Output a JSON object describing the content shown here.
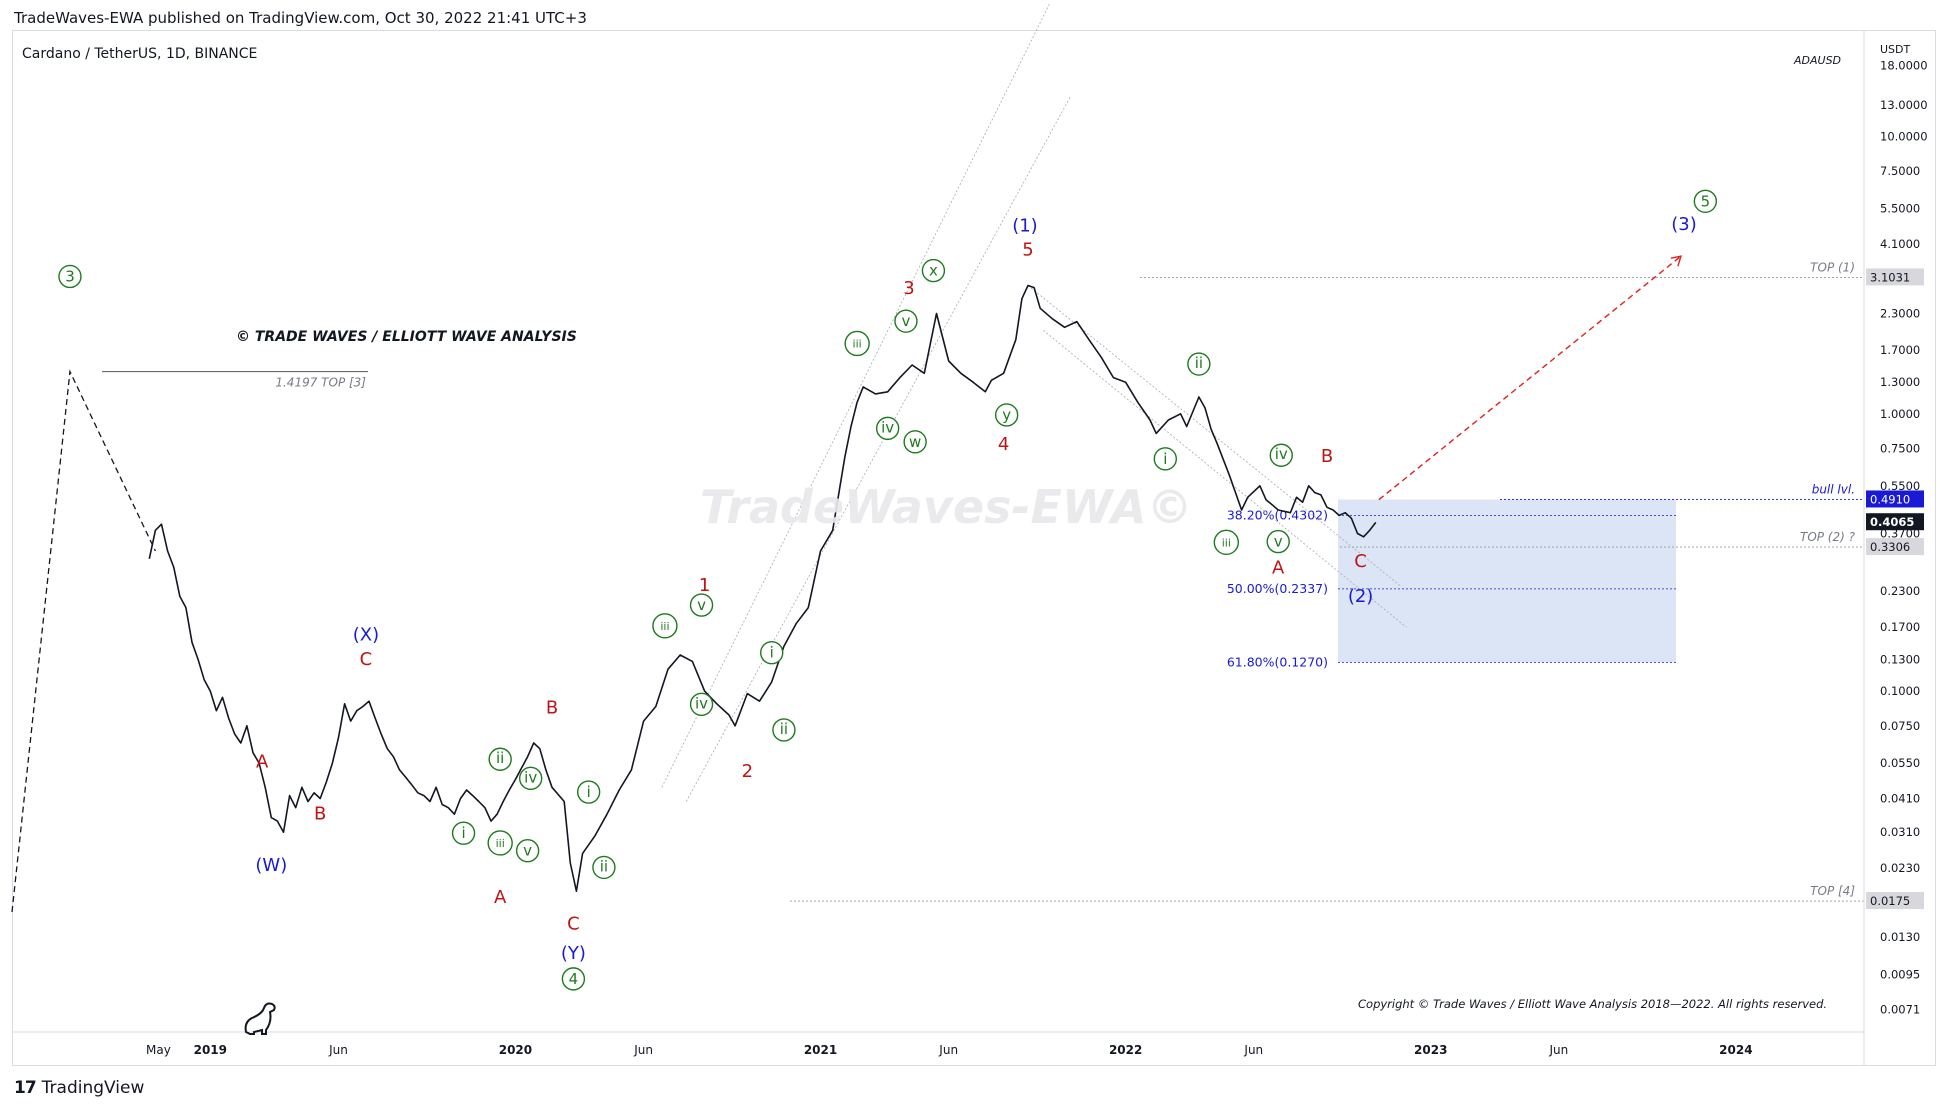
{
  "header": {
    "publisher_line": "TradeWaves-EWA published on TradingView.com, Oct 30, 2022 21:41 UTC+3"
  },
  "chart_title": "Cardano / TetherUS, 1D, BINANCE",
  "symbol_tag": "ADAUSD",
  "currency": "USDT",
  "watermark": "TradeWaves-EWA©",
  "copyright_banner": "© TRADE WAVES / ELLIOTT WAVE ANALYSIS",
  "copyright_footer": "Copyright © Trade Waves / Elliott Wave Analysis 2018—2022. All rights reserved.",
  "footer": {
    "brand": "TradingView",
    "logo_mark": "17"
  },
  "colors": {
    "blue": "#1a1ad6",
    "red": "#c01414",
    "green": "#1e7a1e",
    "fib_zone": "#d6e1f5"
  },
  "chart_data": {
    "type": "line",
    "title": "Cardano / TetherUS, 1D, BINANCE",
    "scale": "log",
    "ylim": [
      0.006,
      24
    ],
    "x_range": [
      2018.35,
      2024.42
    ],
    "y_ticks": [
      "18.0000",
      "13.0000",
      "10.0000",
      "7.5000",
      "5.5000",
      "4.1000",
      "2.3000",
      "1.7000",
      "1.3000",
      "1.0000",
      "0.7500",
      "0.5500",
      "0.3700",
      "0.2300",
      "0.1700",
      "0.1300",
      "0.1000",
      "0.0750",
      "0.0550",
      "0.0410",
      "0.0310",
      "0.0230",
      "0.0130",
      "0.0095",
      "0.0071"
    ],
    "y_tick_values": [
      18,
      13,
      10,
      7.5,
      5.5,
      4.1,
      2.3,
      1.7,
      1.3,
      1.0,
      0.75,
      0.55,
      0.37,
      0.23,
      0.17,
      0.13,
      0.1,
      0.075,
      0.055,
      0.041,
      0.031,
      0.023,
      0.013,
      0.0095,
      0.0071
    ],
    "x_ticks": [
      {
        "label": "May",
        "t": 2018.83
      },
      {
        "label": "2019",
        "t": 2019.0
      },
      {
        "label": "Jun",
        "t": 2019.42
      },
      {
        "label": "2020",
        "t": 2020.0
      },
      {
        "label": "Jun",
        "t": 2020.42
      },
      {
        "label": "2021",
        "t": 2021.0
      },
      {
        "label": "Jun",
        "t": 2021.42
      },
      {
        "label": "2022",
        "t": 2022.0
      },
      {
        "label": "Jun",
        "t": 2022.42
      },
      {
        "label": "2023",
        "t": 2023.0
      },
      {
        "label": "Jun",
        "t": 2023.42
      },
      {
        "label": "2024",
        "t": 2024.0
      }
    ],
    "price_series": [
      [
        2018.8,
        0.3
      ],
      [
        2018.82,
        0.38
      ],
      [
        2018.84,
        0.4
      ],
      [
        2018.86,
        0.32
      ],
      [
        2018.88,
        0.28
      ],
      [
        2018.9,
        0.22
      ],
      [
        2018.92,
        0.2
      ],
      [
        2018.94,
        0.15
      ],
      [
        2018.96,
        0.13
      ],
      [
        2018.98,
        0.11
      ],
      [
        2019.0,
        0.1
      ],
      [
        2019.02,
        0.085
      ],
      [
        2019.04,
        0.095
      ],
      [
        2019.06,
        0.08
      ],
      [
        2019.08,
        0.07
      ],
      [
        2019.1,
        0.065
      ],
      [
        2019.12,
        0.075
      ],
      [
        2019.14,
        0.06
      ],
      [
        2019.16,
        0.055
      ],
      [
        2019.18,
        0.045
      ],
      [
        2019.2,
        0.035
      ],
      [
        2019.22,
        0.034
      ],
      [
        2019.24,
        0.031
      ],
      [
        2019.26,
        0.042
      ],
      [
        2019.28,
        0.038
      ],
      [
        2019.3,
        0.045
      ],
      [
        2019.32,
        0.04
      ],
      [
        2019.34,
        0.043
      ],
      [
        2019.36,
        0.041
      ],
      [
        2019.38,
        0.047
      ],
      [
        2019.4,
        0.055
      ],
      [
        2019.42,
        0.068
      ],
      [
        2019.44,
        0.09
      ],
      [
        2019.46,
        0.078
      ],
      [
        2019.48,
        0.085
      ],
      [
        2019.5,
        0.088
      ],
      [
        2019.52,
        0.092
      ],
      [
        2019.54,
        0.08
      ],
      [
        2019.56,
        0.07
      ],
      [
        2019.58,
        0.062
      ],
      [
        2019.6,
        0.058
      ],
      [
        2019.62,
        0.052
      ],
      [
        2019.64,
        0.049
      ],
      [
        2019.66,
        0.046
      ],
      [
        2019.68,
        0.043
      ],
      [
        2019.7,
        0.042
      ],
      [
        2019.72,
        0.04
      ],
      [
        2019.74,
        0.045
      ],
      [
        2019.76,
        0.039
      ],
      [
        2019.78,
        0.038
      ],
      [
        2019.8,
        0.036
      ],
      [
        2019.82,
        0.041
      ],
      [
        2019.84,
        0.044
      ],
      [
        2019.86,
        0.042
      ],
      [
        2019.88,
        0.04
      ],
      [
        2019.9,
        0.038
      ],
      [
        2019.92,
        0.034
      ],
      [
        2019.94,
        0.036
      ],
      [
        2019.96,
        0.04
      ],
      [
        2019.98,
        0.044
      ],
      [
        2020.0,
        0.048
      ],
      [
        2020.04,
        0.058
      ],
      [
        2020.06,
        0.065
      ],
      [
        2020.08,
        0.062
      ],
      [
        2020.1,
        0.052
      ],
      [
        2020.12,
        0.045
      ],
      [
        2020.16,
        0.04
      ],
      [
        2020.18,
        0.024
      ],
      [
        2020.2,
        0.019
      ],
      [
        2020.22,
        0.026
      ],
      [
        2020.26,
        0.03
      ],
      [
        2020.3,
        0.036
      ],
      [
        2020.34,
        0.044
      ],
      [
        2020.38,
        0.052
      ],
      [
        2020.42,
        0.078
      ],
      [
        2020.46,
        0.088
      ],
      [
        2020.5,
        0.12
      ],
      [
        2020.54,
        0.135
      ],
      [
        2020.58,
        0.128
      ],
      [
        2020.62,
        0.1
      ],
      [
        2020.66,
        0.09
      ],
      [
        2020.7,
        0.082
      ],
      [
        2020.72,
        0.075
      ],
      [
        2020.76,
        0.098
      ],
      [
        2020.8,
        0.092
      ],
      [
        2020.84,
        0.108
      ],
      [
        2020.88,
        0.145
      ],
      [
        2020.92,
        0.175
      ],
      [
        2020.96,
        0.2
      ],
      [
        2021.0,
        0.32
      ],
      [
        2021.04,
        0.38
      ],
      [
        2021.08,
        0.7
      ],
      [
        2021.1,
        0.9
      ],
      [
        2021.12,
        1.1
      ],
      [
        2021.14,
        1.25
      ],
      [
        2021.18,
        1.18
      ],
      [
        2021.22,
        1.2
      ],
      [
        2021.26,
        1.35
      ],
      [
        2021.3,
        1.5
      ],
      [
        2021.34,
        1.4
      ],
      [
        2021.38,
        2.3
      ],
      [
        2021.42,
        1.55
      ],
      [
        2021.46,
        1.4
      ],
      [
        2021.5,
        1.3
      ],
      [
        2021.54,
        1.2
      ],
      [
        2021.56,
        1.32
      ],
      [
        2021.6,
        1.4
      ],
      [
        2021.64,
        1.85
      ],
      [
        2021.66,
        2.6
      ],
      [
        2021.68,
        2.9
      ],
      [
        2021.7,
        2.85
      ],
      [
        2021.72,
        2.4
      ],
      [
        2021.76,
        2.2
      ],
      [
        2021.8,
        2.05
      ],
      [
        2021.84,
        2.15
      ],
      [
        2021.88,
        1.85
      ],
      [
        2021.92,
        1.6
      ],
      [
        2021.96,
        1.35
      ],
      [
        2022.0,
        1.3
      ],
      [
        2022.04,
        1.1
      ],
      [
        2022.08,
        0.95
      ],
      [
        2022.1,
        0.85
      ],
      [
        2022.14,
        0.95
      ],
      [
        2022.18,
        1.0
      ],
      [
        2022.2,
        0.9
      ],
      [
        2022.24,
        1.15
      ],
      [
        2022.26,
        1.05
      ],
      [
        2022.28,
        0.88
      ],
      [
        2022.3,
        0.78
      ],
      [
        2022.34,
        0.6
      ],
      [
        2022.36,
        0.52
      ],
      [
        2022.38,
        0.45
      ],
      [
        2022.4,
        0.5
      ],
      [
        2022.44,
        0.55
      ],
      [
        2022.46,
        0.49
      ],
      [
        2022.48,
        0.47
      ],
      [
        2022.5,
        0.45
      ],
      [
        2022.54,
        0.44
      ],
      [
        2022.56,
        0.5
      ],
      [
        2022.58,
        0.48
      ],
      [
        2022.6,
        0.55
      ],
      [
        2022.62,
        0.52
      ],
      [
        2022.64,
        0.51
      ],
      [
        2022.66,
        0.46
      ],
      [
        2022.68,
        0.45
      ],
      [
        2022.7,
        0.43
      ],
      [
        2022.72,
        0.44
      ],
      [
        2022.74,
        0.42
      ],
      [
        2022.76,
        0.37
      ],
      [
        2022.78,
        0.36
      ],
      [
        2022.8,
        0.38
      ],
      [
        2022.82,
        0.406
      ]
    ],
    "waves": [
      {
        "label": "3",
        "circled": true,
        "color": "green",
        "t": 2018.54,
        "p": 3.0
      },
      {
        "label": "(X)",
        "color": "blue",
        "t": 2019.51,
        "p": 0.152
      },
      {
        "label": "C",
        "color": "red",
        "t": 2019.51,
        "p": 0.124
      },
      {
        "label": "A",
        "color": "red",
        "t": 2019.17,
        "p": 0.053
      },
      {
        "label": "B",
        "color": "red",
        "t": 2019.36,
        "p": 0.0345
      },
      {
        "label": "(W)",
        "color": "blue",
        "t": 2019.2,
        "p": 0.0225
      },
      {
        "label": "B",
        "color": "red",
        "t": 2020.12,
        "p": 0.083
      },
      {
        "label": "A",
        "color": "red",
        "t": 2019.95,
        "p": 0.0172
      },
      {
        "label": "C",
        "color": "red",
        "t": 2020.19,
        "p": 0.0138
      },
      {
        "label": "(Y)",
        "color": "blue",
        "t": 2020.19,
        "p": 0.0108
      },
      {
        "label": "4",
        "circled": true,
        "color": "green",
        "t": 2020.19,
        "p": 0.0088
      },
      {
        "label": "i",
        "circled": true,
        "color": "green",
        "t": 2019.83,
        "p": 0.0295
      },
      {
        "label": "ii",
        "circled": true,
        "color": "green",
        "t": 2019.95,
        "p": 0.0545
      },
      {
        "label": "iii",
        "circled": true,
        "color": "green",
        "t": 2019.95,
        "p": 0.0272
      },
      {
        "label": "iv",
        "circled": true,
        "color": "green",
        "t": 2020.05,
        "p": 0.0465
      },
      {
        "label": "v",
        "circled": true,
        "color": "green",
        "t": 2020.04,
        "p": 0.0255
      },
      {
        "label": "i",
        "circled": true,
        "color": "green",
        "t": 2020.24,
        "p": 0.0415
      },
      {
        "label": "ii",
        "circled": true,
        "color": "green",
        "t": 2020.29,
        "p": 0.0222
      },
      {
        "label": "1",
        "color": "red",
        "t": 2020.62,
        "p": 0.23
      },
      {
        "label": "v",
        "circled": true,
        "color": "green",
        "t": 2020.61,
        "p": 0.196
      },
      {
        "label": "iii",
        "circled": true,
        "color": "green",
        "t": 2020.49,
        "p": 0.165
      },
      {
        "label": "iv",
        "circled": true,
        "color": "green",
        "t": 2020.61,
        "p": 0.086
      },
      {
        "label": "2",
        "color": "red",
        "t": 2020.76,
        "p": 0.049
      },
      {
        "label": "i",
        "circled": true,
        "color": "green",
        "t": 2020.84,
        "p": 0.132
      },
      {
        "label": "ii",
        "circled": true,
        "color": "green",
        "t": 2020.88,
        "p": 0.0695
      },
      {
        "label": "3",
        "color": "red",
        "t": 2021.29,
        "p": 2.7
      },
      {
        "label": "x",
        "circled": true,
        "color": "green",
        "t": 2021.37,
        "p": 3.15
      },
      {
        "label": "v",
        "circled": true,
        "color": "green",
        "t": 2021.28,
        "p": 2.07
      },
      {
        "label": "iii",
        "circled": true,
        "color": "green",
        "t": 2021.12,
        "p": 1.72
      },
      {
        "label": "iv",
        "circled": true,
        "color": "green",
        "t": 2021.22,
        "p": 0.85
      },
      {
        "label": "w",
        "circled": true,
        "color": "green",
        "t": 2021.31,
        "p": 0.76
      },
      {
        "label": "y",
        "circled": true,
        "color": "green",
        "t": 2021.61,
        "p": 0.95
      },
      {
        "label": "4",
        "color": "red",
        "t": 2021.6,
        "p": 0.74
      },
      {
        "label": "(1)",
        "color": "blue",
        "t": 2021.67,
        "p": 4.55
      },
      {
        "label": "5",
        "color": "red",
        "t": 2021.68,
        "p": 3.72
      },
      {
        "label": "ii",
        "circled": true,
        "color": "green",
        "t": 2022.24,
        "p": 1.45
      },
      {
        "label": "i",
        "circled": true,
        "color": "green",
        "t": 2022.13,
        "p": 0.66
      },
      {
        "label": "iv",
        "circled": true,
        "color": "green",
        "t": 2022.51,
        "p": 0.68
      },
      {
        "label": "B",
        "color": "red",
        "t": 2022.66,
        "p": 0.67
      },
      {
        "label": "iii",
        "circled": true,
        "color": "green",
        "t": 2022.33,
        "p": 0.33
      },
      {
        "label": "v",
        "circled": true,
        "color": "green",
        "t": 2022.5,
        "p": 0.332
      },
      {
        "label": "A",
        "color": "red",
        "t": 2022.5,
        "p": 0.265
      },
      {
        "label": "C",
        "color": "red",
        "t": 2022.77,
        "p": 0.28
      },
      {
        "label": "(2)",
        "color": "blue",
        "t": 2022.77,
        "p": 0.21
      },
      {
        "label": "(3)",
        "color": "blue",
        "t": 2023.83,
        "p": 4.6
      },
      {
        "label": "5",
        "circled": true,
        "color": "green",
        "t": 2023.9,
        "p": 5.6
      }
    ],
    "fib_levels": [
      {
        "label": "38.20%(0.4302)",
        "value": 0.4302
      },
      {
        "label": "50.00%(0.2337)",
        "value": 0.2337
      },
      {
        "label": "61.80%(0.1270)",
        "value": 0.127
      }
    ],
    "horizontal_levels": [
      {
        "label": "TOP (1)",
        "value": 3.1031,
        "box": "3.1031"
      },
      {
        "label": "bull lvl.",
        "value": 0.491,
        "box": "0.4910"
      },
      {
        "label": "TOP (2) ?",
        "value": 0.3306,
        "box": "0.3306"
      },
      {
        "label": "TOP [4]",
        "value": 0.0175,
        "box": "0.0175"
      },
      {
        "label": "1.4197 TOP [3]",
        "value": 1.4197
      }
    ],
    "current_price": {
      "value": 0.4065,
      "label": "0.4065"
    },
    "projection": {
      "from": {
        "t": 2022.83,
        "p": 0.49
      },
      "to": {
        "t": 2023.82,
        "p": 3.7
      }
    }
  }
}
